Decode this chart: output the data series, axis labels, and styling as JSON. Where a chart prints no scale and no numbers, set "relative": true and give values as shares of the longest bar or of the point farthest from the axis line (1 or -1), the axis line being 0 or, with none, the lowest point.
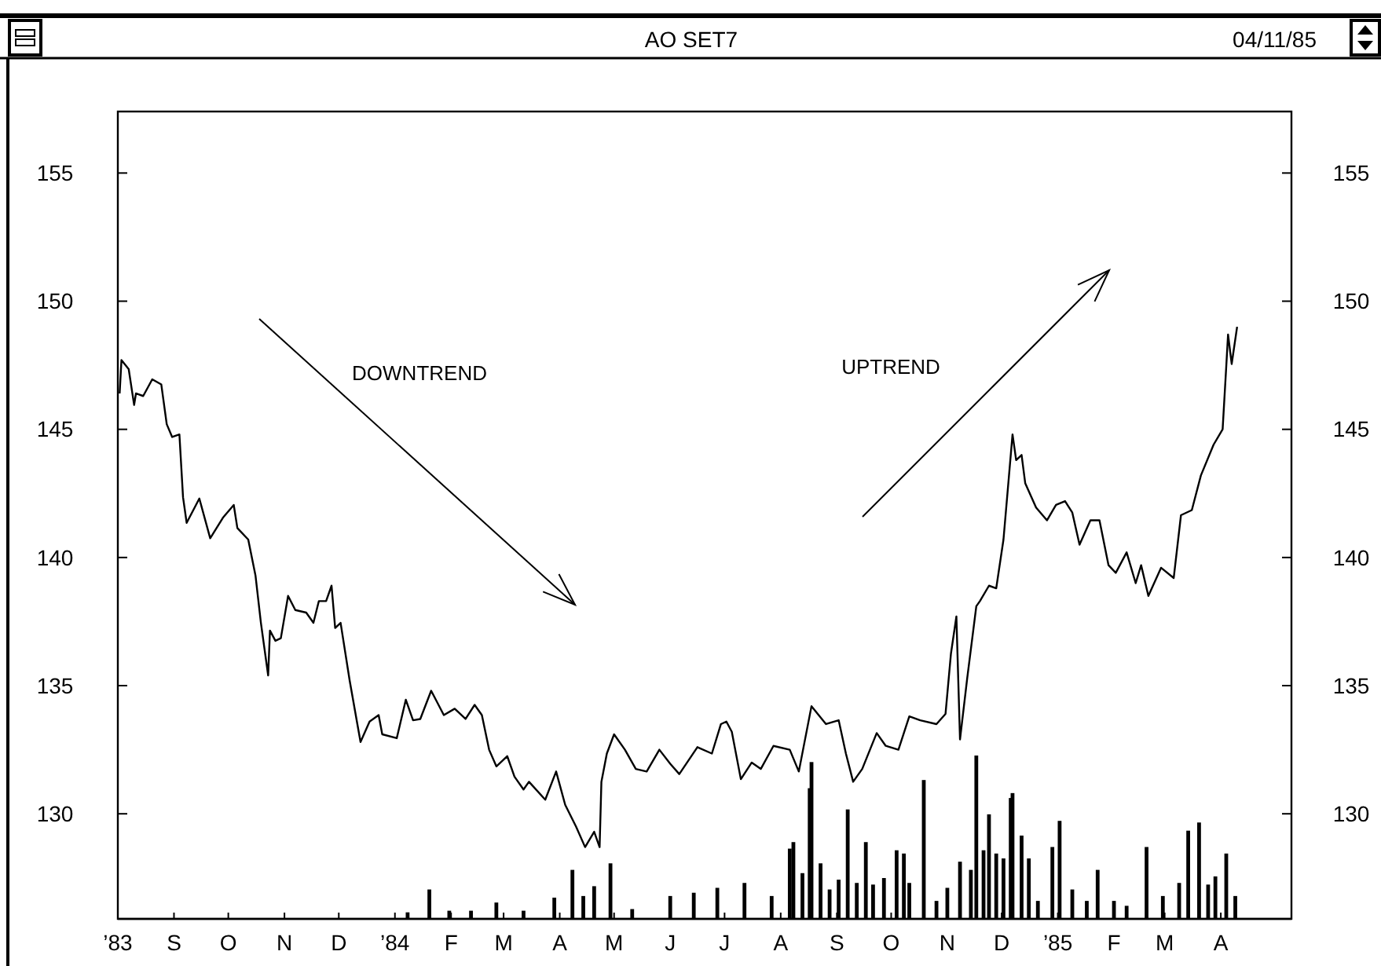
{
  "chart_data": [
    {
      "type": "line",
      "title": "AO SET7",
      "subtitle": "04/11/85",
      "color": "#000000",
      "line_style": "solid",
      "grid": false,
      "annotations": [
        "DOWNTREND",
        "UPTREND"
      ],
      "xlim": [
        "1983-08-01",
        "1985-05-10"
      ],
      "xticks": [
        {
          "value": "1983-08-01",
          "label": "’83"
        },
        {
          "value": "1983-09-01",
          "label": "S"
        },
        {
          "value": "1983-10-01",
          "label": "O"
        },
        {
          "value": "1983-11-01",
          "label": "N"
        },
        {
          "value": "1983-12-01",
          "label": "D"
        },
        {
          "value": "1984-01-01",
          "label": "’84"
        },
        {
          "value": "1984-02-01",
          "label": "F"
        },
        {
          "value": "1984-03-01",
          "label": "M"
        },
        {
          "value": "1984-04-01",
          "label": "A"
        },
        {
          "value": "1984-05-01",
          "label": "M"
        },
        {
          "value": "1984-06-01",
          "label": "J"
        },
        {
          "value": "1984-07-01",
          "label": "J"
        },
        {
          "value": "1984-08-01",
          "label": "A"
        },
        {
          "value": "1984-09-01",
          "label": "S"
        },
        {
          "value": "1984-10-01",
          "label": "O"
        },
        {
          "value": "1984-11-01",
          "label": "N"
        },
        {
          "value": "1984-12-01",
          "label": "D"
        },
        {
          "value": "1985-01-01",
          "label": "’85"
        },
        {
          "value": "1985-02-01",
          "label": "F"
        },
        {
          "value": "1985-03-01",
          "label": "M"
        },
        {
          "value": "1985-04-01",
          "label": "A"
        }
      ],
      "ylim": [
        125.9,
        157.4
      ],
      "yticks": [
        130,
        135,
        140,
        145,
        150,
        155
      ],
      "y2lim": [
        125.9,
        157.4
      ],
      "y2ticks": [
        130,
        135,
        140,
        145,
        150,
        155
      ],
      "x": [
        "1983-08-02",
        "1983-08-03",
        "1983-08-07",
        "1983-08-10",
        "1983-08-11",
        "1983-08-15",
        "1983-08-20",
        "1983-08-25",
        "1983-08-28",
        "1983-08-31",
        "1983-09-04",
        "1983-09-06",
        "1983-09-08",
        "1983-09-15",
        "1983-09-21",
        "1983-09-28",
        "1983-10-04",
        "1983-10-06",
        "1983-10-12",
        "1983-10-16",
        "1983-10-19",
        "1983-10-23",
        "1983-10-24",
        "1983-10-27",
        "1983-10-30",
        "1983-11-03",
        "1983-11-07",
        "1983-11-13",
        "1983-11-17",
        "1983-11-20",
        "1983-11-24",
        "1983-11-27",
        "1983-11-29",
        "1983-12-02",
        "1983-12-07",
        "1983-12-11",
        "1983-12-13",
        "1983-12-18",
        "1983-12-23",
        "1983-12-25",
        "1984-01-02",
        "1984-01-07",
        "1984-01-11",
        "1984-01-15",
        "1984-01-21",
        "1984-01-28",
        "1984-02-03",
        "1984-02-09",
        "1984-02-14",
        "1984-02-18",
        "1984-02-22",
        "1984-02-26",
        "1984-03-03",
        "1984-03-07",
        "1984-03-12",
        "1984-03-15",
        "1984-03-24",
        "1984-03-30",
        "1984-04-04",
        "1984-04-10",
        "1984-04-15",
        "1984-04-20",
        "1984-04-23",
        "1984-04-24",
        "1984-04-27",
        "1984-05-01",
        "1984-05-07",
        "1984-05-13",
        "1984-05-19",
        "1984-05-26",
        "1984-06-01",
        "1984-06-06",
        "1984-06-16",
        "1984-06-24",
        "1984-06-29",
        "1984-07-02",
        "1984-07-05",
        "1984-07-10",
        "1984-07-16",
        "1984-07-21",
        "1984-07-28",
        "1984-08-06",
        "1984-08-11",
        "1984-08-18",
        "1984-08-26",
        "1984-09-02",
        "1984-09-06",
        "1984-09-10",
        "1984-09-15",
        "1984-09-23",
        "1984-09-28",
        "1984-10-05",
        "1984-10-11",
        "1984-10-17",
        "1984-10-26",
        "1984-10-31",
        "1984-11-03",
        "1984-11-06",
        "1984-11-08",
        "1984-11-12",
        "1984-11-17",
        "1984-11-19",
        "1984-11-24",
        "1984-11-28",
        "1984-12-02",
        "1984-12-07",
        "1984-12-09",
        "1984-12-12",
        "1984-12-14",
        "1984-12-20",
        "1984-12-26",
        "1984-12-31",
        "1985-01-05",
        "1985-01-09",
        "1985-01-13",
        "1985-01-19",
        "1985-01-24",
        "1985-01-29",
        "1985-02-02",
        "1985-02-08",
        "1985-02-13",
        "1985-02-16",
        "1985-02-20",
        "1985-02-27",
        "1985-03-06",
        "1985-03-10",
        "1985-03-16",
        "1985-03-21",
        "1985-03-28",
        "1985-04-02",
        "1985-04-04",
        "1985-04-05",
        "1985-04-07",
        "1985-04-10"
      ],
      "values": [
        146.4,
        147.7,
        147.35,
        145.95,
        146.4,
        146.3,
        146.95,
        146.75,
        145.2,
        144.7,
        144.8,
        142.35,
        141.35,
        142.3,
        140.75,
        141.55,
        142.05,
        141.15,
        140.7,
        139.3,
        137.45,
        135.4,
        137.15,
        136.75,
        136.85,
        138.5,
        137.95,
        137.85,
        137.45,
        138.3,
        138.3,
        138.9,
        137.25,
        137.45,
        135.2,
        133.6,
        132.8,
        133.6,
        133.85,
        133.1,
        132.95,
        134.45,
        133.65,
        133.7,
        134.8,
        133.85,
        134.1,
        133.7,
        134.25,
        133.85,
        132.5,
        131.85,
        132.25,
        131.45,
        130.95,
        131.25,
        130.55,
        131.65,
        130.35,
        129.5,
        128.7,
        129.3,
        128.7,
        131.25,
        132.35,
        133.1,
        132.5,
        131.75,
        131.65,
        132.5,
        131.95,
        131.55,
        132.6,
        132.35,
        133.5,
        133.6,
        133.2,
        131.35,
        132.0,
        131.75,
        132.65,
        132.5,
        131.65,
        134.2,
        133.5,
        133.65,
        132.35,
        131.25,
        131.75,
        133.15,
        132.65,
        132.5,
        133.8,
        133.65,
        133.5,
        133.9,
        136.25,
        137.7,
        132.9,
        135.3,
        138.1,
        138.3,
        138.9,
        138.8,
        140.7,
        144.8,
        143.8,
        144.0,
        142.9,
        141.95,
        141.45,
        142.05,
        142.2,
        141.75,
        140.5,
        141.45,
        141.45,
        139.7,
        139.4,
        140.2,
        139.0,
        139.7,
        138.5,
        139.6,
        139.2,
        141.65,
        141.85,
        143.2,
        144.4,
        145.0,
        147.45,
        148.7,
        147.55,
        149.0
      ]
    },
    {
      "type": "bar",
      "relative": true,
      "color": "#000000",
      "tick_labels": false,
      "xlim": [
        "1983-08-01",
        "1985-05-10"
      ],
      "x": [
        "1984-01-08",
        "1984-01-20",
        "1984-01-31",
        "1984-02-12",
        "1984-02-26",
        "1984-03-12",
        "1984-03-29",
        "1984-04-08",
        "1984-04-14",
        "1984-04-20",
        "1984-04-29",
        "1984-05-11",
        "1984-06-01",
        "1984-06-14",
        "1984-06-27",
        "1984-07-12",
        "1984-07-27",
        "1984-08-06",
        "1984-08-08",
        "1984-08-13",
        "1984-08-17",
        "1984-08-18",
        "1984-08-23",
        "1984-08-28",
        "1984-09-02",
        "1984-09-07",
        "1984-09-12",
        "1984-09-17",
        "1984-09-21",
        "1984-09-27",
        "1984-10-04",
        "1984-10-08",
        "1984-10-11",
        "1984-10-19",
        "1984-10-26",
        "1984-11-01",
        "1984-11-08",
        "1984-11-14",
        "1984-11-17",
        "1984-11-21",
        "1984-11-24",
        "1984-11-28",
        "1984-12-02",
        "1984-12-06",
        "1984-12-07",
        "1984-12-12",
        "1984-12-16",
        "1984-12-21",
        "1984-12-29",
        "1985-01-02",
        "1985-01-09",
        "1985-01-17",
        "1985-01-23",
        "1985-02-01",
        "1985-02-08",
        "1985-02-19",
        "1985-02-28",
        "1985-03-09",
        "1985-03-14",
        "1985-03-20",
        "1985-03-25",
        "1985-03-29",
        "1985-04-04",
        "1985-04-09"
      ],
      "values": [
        0.04,
        0.18,
        0.05,
        0.05,
        0.1,
        0.05,
        0.13,
        0.3,
        0.14,
        0.2,
        0.34,
        0.06,
        0.14,
        0.16,
        0.19,
        0.22,
        0.14,
        0.43,
        0.47,
        0.28,
        0.8,
        0.96,
        0.34,
        0.18,
        0.24,
        0.67,
        0.22,
        0.47,
        0.21,
        0.25,
        0.42,
        0.4,
        0.22,
        0.85,
        0.11,
        0.19,
        0.35,
        0.3,
        1,
        0.42,
        0.64,
        0.4,
        0.37,
        0.74,
        0.77,
        0.51,
        0.37,
        0.11,
        0.44,
        0.6,
        0.18,
        0.11,
        0.3,
        0.11,
        0.08,
        0.44,
        0.14,
        0.22,
        0.54,
        0.59,
        0.21,
        0.26,
        0.4,
        0.14
      ]
    }
  ]
}
